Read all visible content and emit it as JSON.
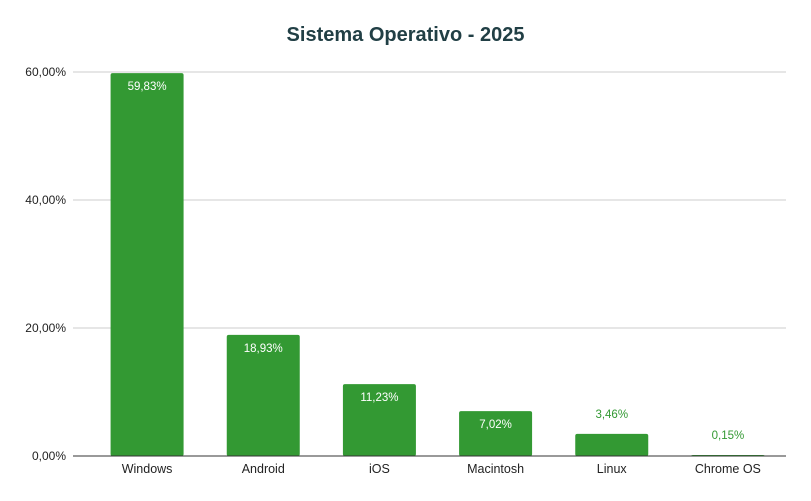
{
  "chart_data": {
    "type": "bar",
    "title": "Sistema Operativo - 2025",
    "xlabel": "",
    "ylabel": "",
    "categories": [
      "Windows",
      "Android",
      "iOS",
      "Macintosh",
      "Linux",
      "Chrome OS"
    ],
    "values": [
      59.83,
      18.93,
      11.23,
      7.02,
      3.46,
      0.15
    ],
    "data_labels": [
      "59,83%",
      "18,93%",
      "11,23%",
      "7,02%",
      "3,46%",
      "0,15%"
    ],
    "ylim": [
      0,
      60
    ],
    "yticks": [
      {
        "value": 0,
        "label": "0,00%"
      },
      {
        "value": 20,
        "label": "20,00%"
      },
      {
        "value": 40,
        "label": "40,00%"
      },
      {
        "value": 60,
        "label": "60,00%"
      }
    ],
    "grid": true,
    "legend": "none",
    "colors": {
      "bar": "#339933",
      "label_inside": "#ffffff",
      "label_outside": "#339933",
      "title": "#213f45",
      "axis_text": "#222222",
      "grid": "#cccccc",
      "baseline": "#333333"
    }
  }
}
